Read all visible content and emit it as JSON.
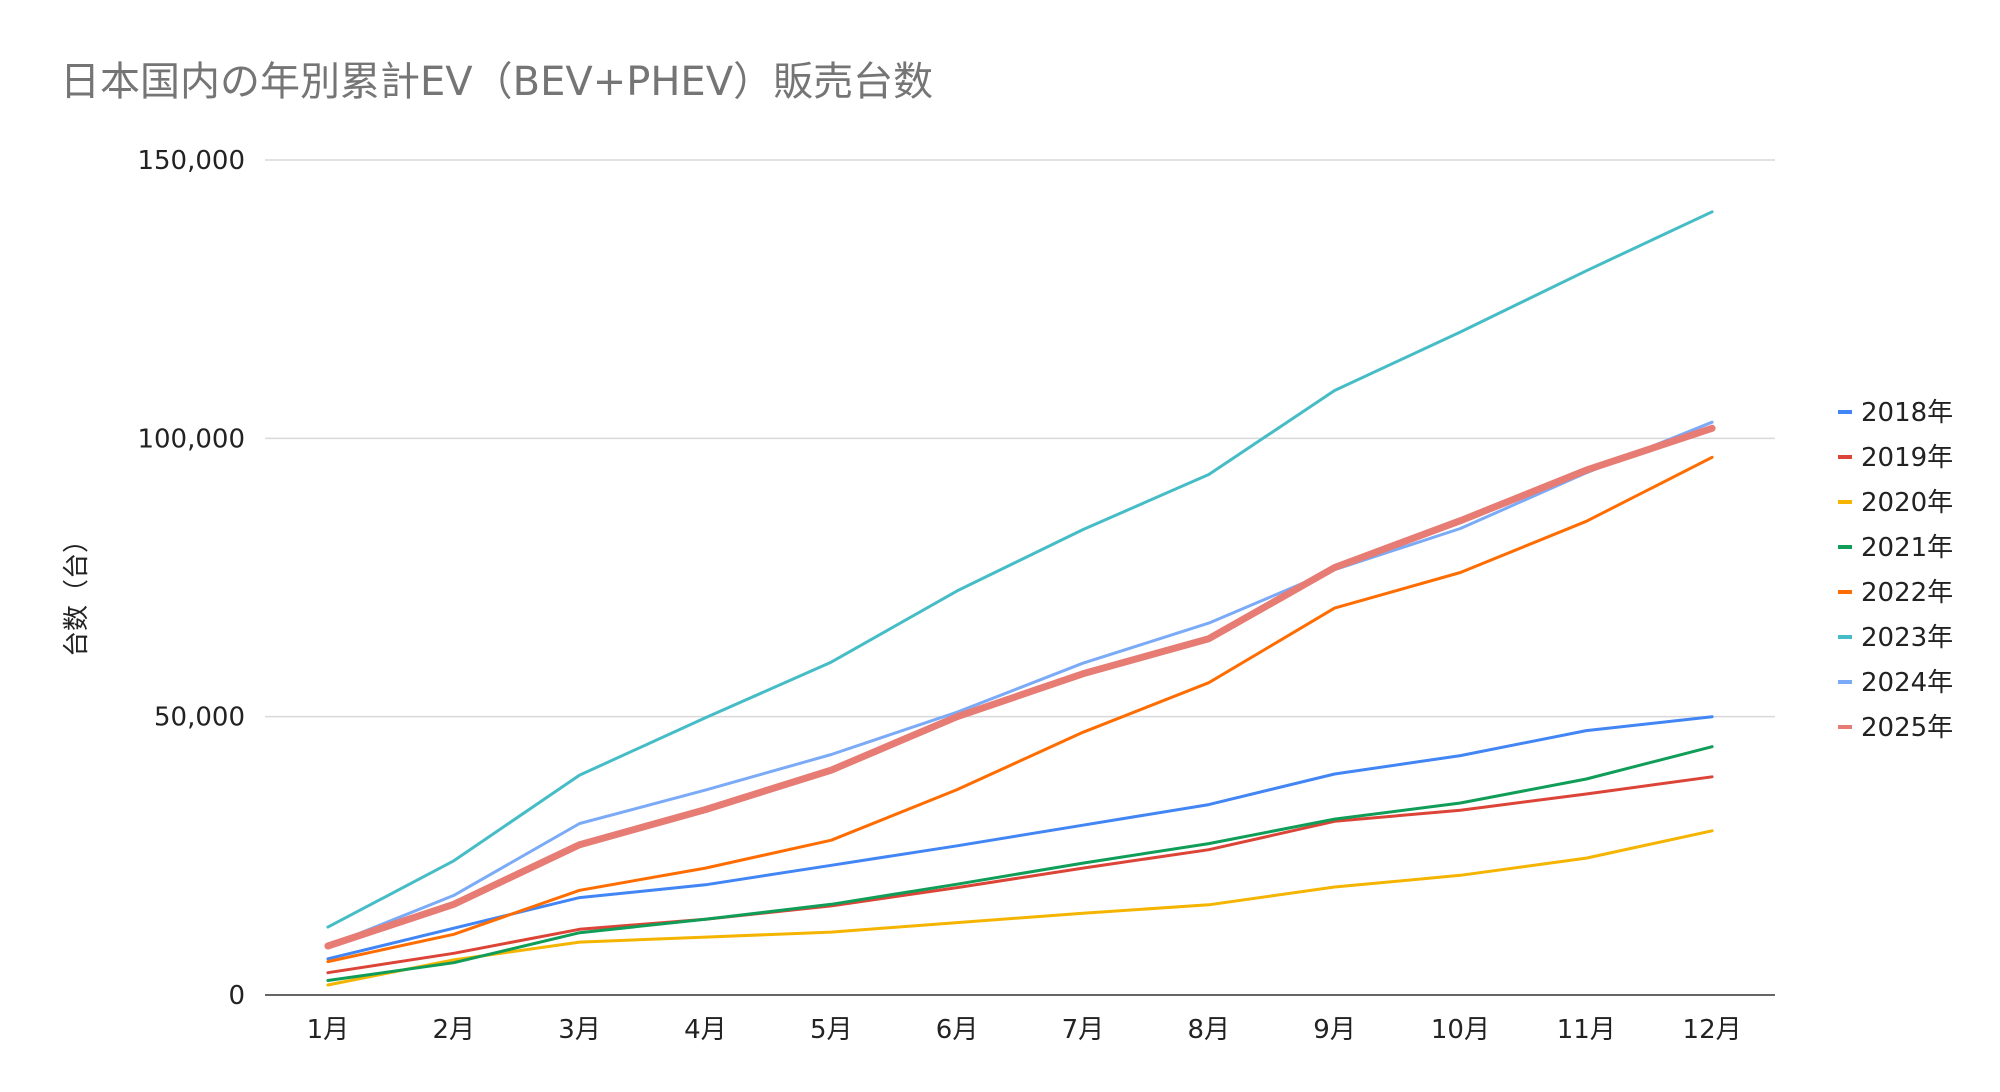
{
  "chart_data": {
    "type": "line",
    "title": "日本国内の年別累計EV（BEV+PHEV）販売台数",
    "xlabel": "",
    "ylabel": "台数（台）",
    "categories": [
      "1月",
      "2月",
      "3月",
      "4月",
      "5月",
      "6月",
      "7月",
      "8月",
      "9月",
      "10月",
      "11月",
      "12月"
    ],
    "ylim": [
      0,
      150000
    ],
    "yticks": [
      0,
      50000,
      100000,
      150000
    ],
    "ytick_labels": [
      "0",
      "50,000",
      "100,000",
      "150,000"
    ],
    "grid": true,
    "legend_position": "right",
    "series": [
      {
        "name": "2018年",
        "color": "#4285f4",
        "width": 3,
        "values": [
          6500,
          12000,
          17500,
          19800,
          23300,
          26800,
          30500,
          34200,
          39700,
          43000,
          47500,
          50000
        ]
      },
      {
        "name": "2019年",
        "color": "#db4437",
        "width": 3,
        "values": [
          4000,
          7500,
          11800,
          13600,
          16000,
          19300,
          22800,
          26100,
          31200,
          33200,
          36100,
          39200
        ]
      },
      {
        "name": "2020年",
        "color": "#f4b400",
        "width": 3,
        "values": [
          1800,
          6300,
          9500,
          10400,
          11300,
          13000,
          14700,
          16200,
          19400,
          21500,
          24600,
          29500
        ]
      },
      {
        "name": "2021年",
        "color": "#0f9d58",
        "width": 3,
        "values": [
          2600,
          5800,
          11200,
          13600,
          16300,
          19900,
          23700,
          27200,
          31600,
          34500,
          38800,
          44600
        ]
      },
      {
        "name": "2022年",
        "color": "#ff6d01",
        "width": 3,
        "values": [
          6000,
          10900,
          18800,
          22800,
          27800,
          36900,
          47200,
          56100,
          69500,
          75900,
          85100,
          96600
        ]
      },
      {
        "name": "2023年",
        "color": "#46bdc6",
        "width": 3,
        "values": [
          12200,
          24100,
          39500,
          49800,
          59800,
          72600,
          83600,
          93500,
          108600,
          119100,
          130100,
          140700
        ]
      },
      {
        "name": "2024年",
        "color": "#7baaf7",
        "width": 3,
        "values": [
          8800,
          17900,
          30800,
          36800,
          43200,
          50800,
          59600,
          66800,
          76400,
          83800,
          93800,
          102900
        ]
      },
      {
        "name": "2025年",
        "color": "#e67c73",
        "width": 7,
        "values": [
          8800,
          16300,
          27000,
          33300,
          40400,
          50000,
          57700,
          64000,
          76800,
          85200,
          94300,
          101800
        ]
      }
    ]
  }
}
